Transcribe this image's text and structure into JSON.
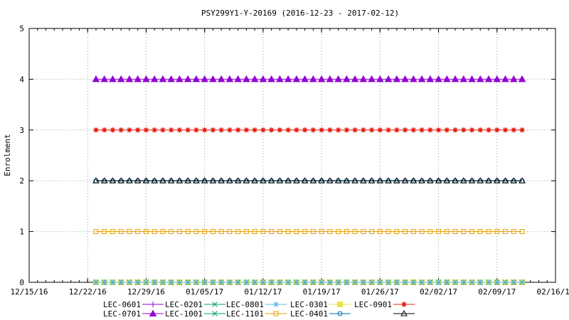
{
  "chart_data": {
    "type": "line",
    "title": "PSY299Y1-Y-20169 (2016-12-23 - 2017-02-12)",
    "xlabel": "",
    "ylabel": "Enrolment",
    "xlim": [
      "2016-12-15",
      "2017-02-16"
    ],
    "ylim": [
      0,
      5
    ],
    "grid": true,
    "legend_position": "bottom",
    "x_ticks": [
      "12/15/16",
      "12/22/16",
      "12/29/16",
      "01/05/17",
      "01/12/17",
      "01/19/17",
      "01/26/17",
      "02/02/17",
      "02/09/17",
      "02/16/17"
    ],
    "y_ticks": [
      "0",
      "1",
      "2",
      "3",
      "4",
      "5"
    ],
    "x_start": "2016-12-23",
    "x_end": "2017-02-12",
    "series": [
      {
        "name": "LEC-0601",
        "value": 0,
        "color": "#9400d3",
        "marker": "plus"
      },
      {
        "name": "LEC-0201",
        "value": 0,
        "color": "#009e73",
        "marker": "cross"
      },
      {
        "name": "LEC-0801",
        "value": 0,
        "color": "#56b4e9",
        "marker": "star"
      },
      {
        "name": "LEC-0301",
        "value": 0,
        "color": "#f0e442",
        "marker": "filled-square"
      },
      {
        "name": "LEC-0901",
        "value": 3,
        "color": "#e51e10",
        "marker": "filled-circle-star"
      },
      {
        "name": "LEC-0701",
        "value": 4,
        "color": "#9400d3",
        "marker": "filled-triangle"
      },
      {
        "name": "LEC-1001",
        "value": 0,
        "color": "#009e73",
        "marker": "cross"
      },
      {
        "name": "LEC-1101",
        "value": 1,
        "color": "#e69f00",
        "marker": "open-square"
      },
      {
        "name": "LEC-0401",
        "value": 2,
        "color": "#0072b2",
        "marker": "open-circle"
      },
      {
        "name": "",
        "value": 2,
        "color": "#000000",
        "marker": "open-triangle"
      }
    ]
  }
}
